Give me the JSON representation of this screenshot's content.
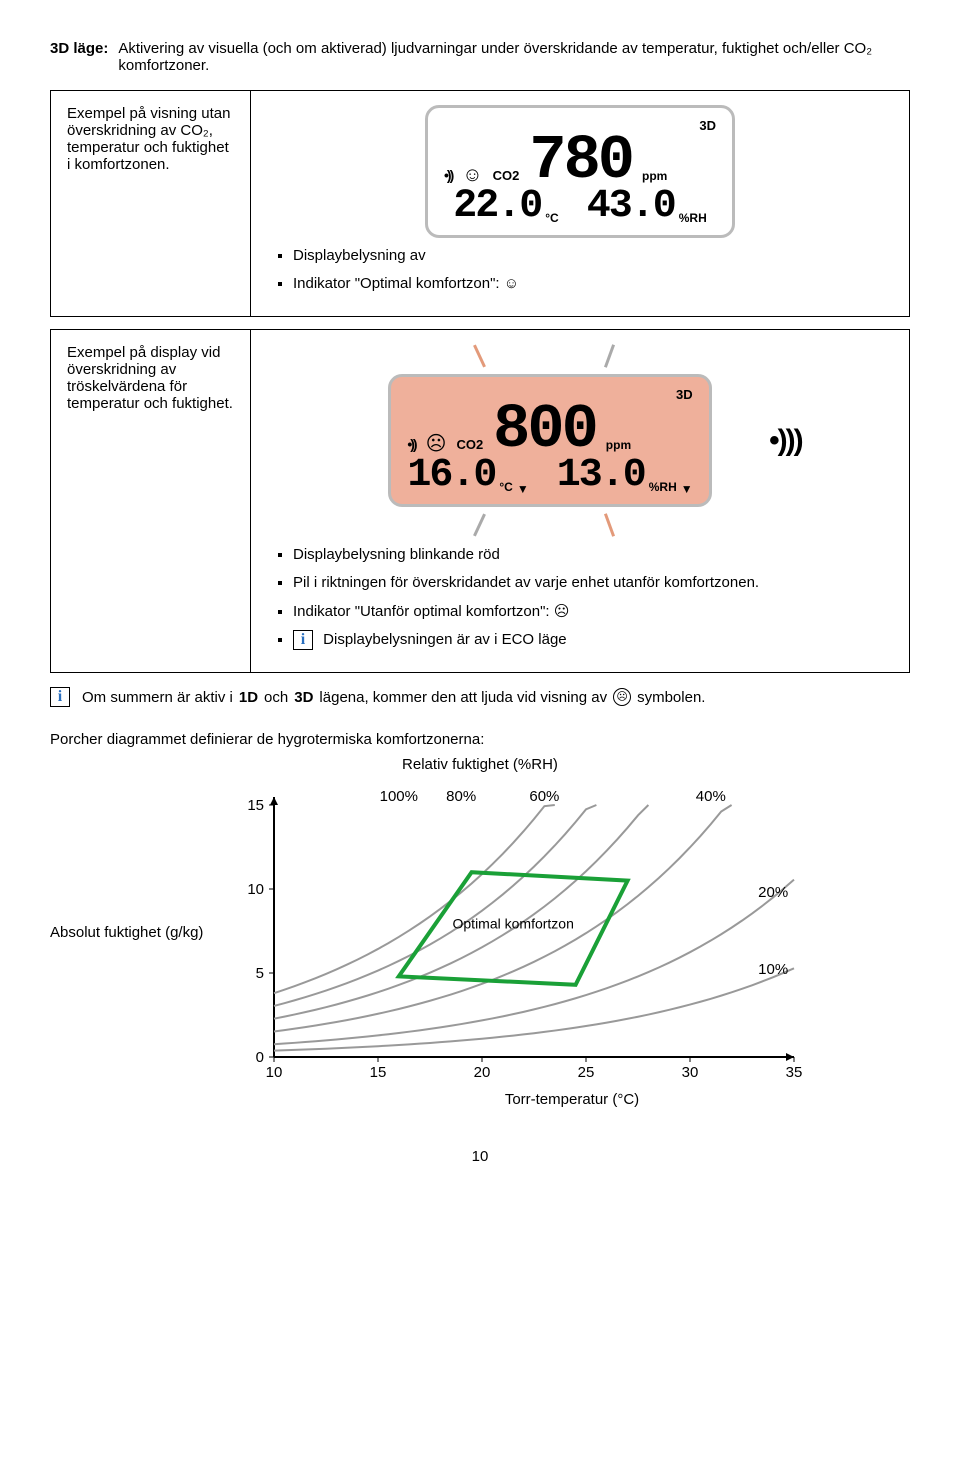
{
  "heading": {
    "label": "3D läge:",
    "text": "Aktivering av visuella (och om aktiverad) ljudvarningar under överskridande av temperatur, fuktighet och/eller CO₂ komfortzoner."
  },
  "row1": {
    "left": "Exempel på visning utan överskridning av CO₂, temperatur och fuktighet i komfortzonen.",
    "b1": "Displaybelysning av",
    "b2": "Indikator \"Optimal komfortzon\": ☺",
    "lcd": {
      "mode": "3D",
      "co2": "780",
      "co2unit": "ppm",
      "t": "22.0",
      "tunit": "°C",
      "rh": "43.0",
      "rhunit": "%RH",
      "face": "☺",
      "co2label": "CO2",
      "snd": "•))"
    }
  },
  "row2": {
    "left": "Exempel på display vid överskridning av tröskelvärdena för temperatur och fuktighet.",
    "b1": "Displaybelysning blinkande röd",
    "b2": "Pil i riktningen för överskridandet av varje enhet utanför komfortzonen.",
    "b3": "Indikator \"Utanför optimal komfortzon\": ☹",
    "b4": "Displaybelysningen är av i ECO läge",
    "lcd": {
      "mode": "3D",
      "co2": "800",
      "co2unit": "ppm",
      "t": "16.0",
      "tunit": "°C",
      "rh": "13.0",
      "rhunit": "%RH",
      "face": "☹",
      "co2label": "CO2",
      "snd": "•))"
    },
    "speaker": "•)))"
  },
  "note": {
    "pre": "Om summern är aktiv i",
    "mid": "1D",
    "and": "och",
    "mid2": "3D",
    "post": "lägena, kommer den att ljuda vid visning av",
    "post2": "symbolen."
  },
  "porcher": {
    "title": "Porcher diagrammet definierar de hygrotermiska komfortzonerna:",
    "rh_title": "Relativ fuktighet (%RH)",
    "y_label": "Absolut fuktighet (g/kg)",
    "x_label": "Torr-temperatur (°C)",
    "zone_label": "Optimal komfortzon",
    "y_ticks": [
      0,
      5,
      10,
      15
    ],
    "x_ticks": [
      10,
      15,
      20,
      25,
      30,
      35
    ],
    "curve_labels": [
      "100%",
      "80%",
      "60%",
      "40%",
      "20%",
      "10%"
    ],
    "colors": {
      "axis": "#000000",
      "curve": "#999999",
      "zone": "#1aa037",
      "label": "#000000"
    },
    "zone_points": [
      [
        16,
        4.8
      ],
      [
        24.5,
        4.3
      ],
      [
        27,
        10.5
      ],
      [
        19.5,
        11.0
      ]
    ]
  },
  "pagenum": "10"
}
